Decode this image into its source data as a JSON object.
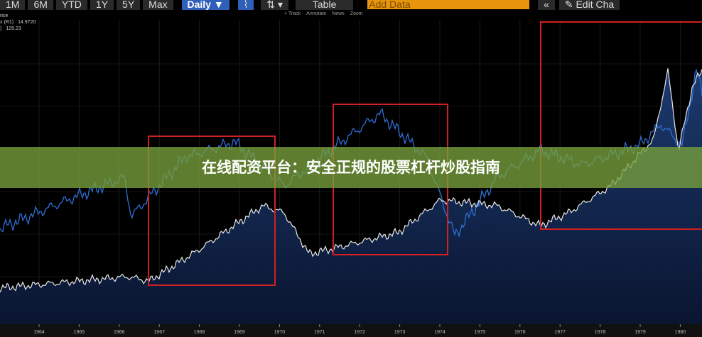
{
  "toolbar": {
    "buttons": [
      "1M",
      "6M",
      "YTD",
      "1Y",
      "5Y",
      "Max"
    ],
    "interval": "Daily ▼",
    "table": "Table",
    "add_data": "Add Data",
    "edit": "Edit Cha",
    "tools": [
      "+ Track",
      "Annotate",
      "News",
      "Zoom"
    ]
  },
  "legend": [
    {
      "name": "rice",
      "value": ""
    },
    {
      "name": "x (R1)",
      "value": "14.9720"
    },
    {
      "name": ")",
      "value": "129.23"
    }
  ],
  "banner": {
    "title": "在线配资平台：安全正规的股票杠杆炒股指南"
  },
  "x_axis": {
    "labels": [
      "1964",
      "1965",
      "1966",
      "1967",
      "1968",
      "1969",
      "1970",
      "1971",
      "1972",
      "1973",
      "1974",
      "1975",
      "1976",
      "1977",
      "1978",
      "1979",
      "1980"
    ]
  }
}
